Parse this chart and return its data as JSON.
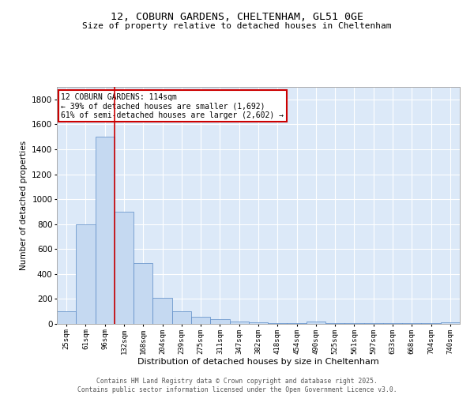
{
  "title1": "12, COBURN GARDENS, CHELTENHAM, GL51 0GE",
  "title2": "Size of property relative to detached houses in Cheltenham",
  "xlabel": "Distribution of detached houses by size in Cheltenham",
  "ylabel": "Number of detached properties",
  "categories": [
    "25sqm",
    "61sqm",
    "96sqm",
    "132sqm",
    "168sqm",
    "204sqm",
    "239sqm",
    "275sqm",
    "311sqm",
    "347sqm",
    "382sqm",
    "418sqm",
    "454sqm",
    "490sqm",
    "525sqm",
    "561sqm",
    "597sqm",
    "633sqm",
    "668sqm",
    "704sqm",
    "740sqm"
  ],
  "values": [
    100,
    800,
    1500,
    900,
    490,
    210,
    100,
    60,
    35,
    20,
    15,
    5,
    5,
    20,
    5,
    5,
    5,
    5,
    5,
    5,
    15
  ],
  "bar_color": "#c5d9f1",
  "bar_edge_color": "#5a8ac6",
  "bg_color": "#dce9f8",
  "grid_color": "#ffffff",
  "vline_x": 2.5,
  "vline_color": "#cc0000",
  "annotation_title": "12 COBURN GARDENS: 114sqm",
  "annotation_line1": "← 39% of detached houses are smaller (1,692)",
  "annotation_line2": "61% of semi-detached houses are larger (2,602) →",
  "annotation_box_color": "#cc0000",
  "footer1": "Contains HM Land Registry data © Crown copyright and database right 2025.",
  "footer2": "Contains public sector information licensed under the Open Government Licence v3.0.",
  "ylim": [
    0,
    1900
  ],
  "yticks": [
    0,
    200,
    400,
    600,
    800,
    1000,
    1200,
    1400,
    1600,
    1800
  ]
}
